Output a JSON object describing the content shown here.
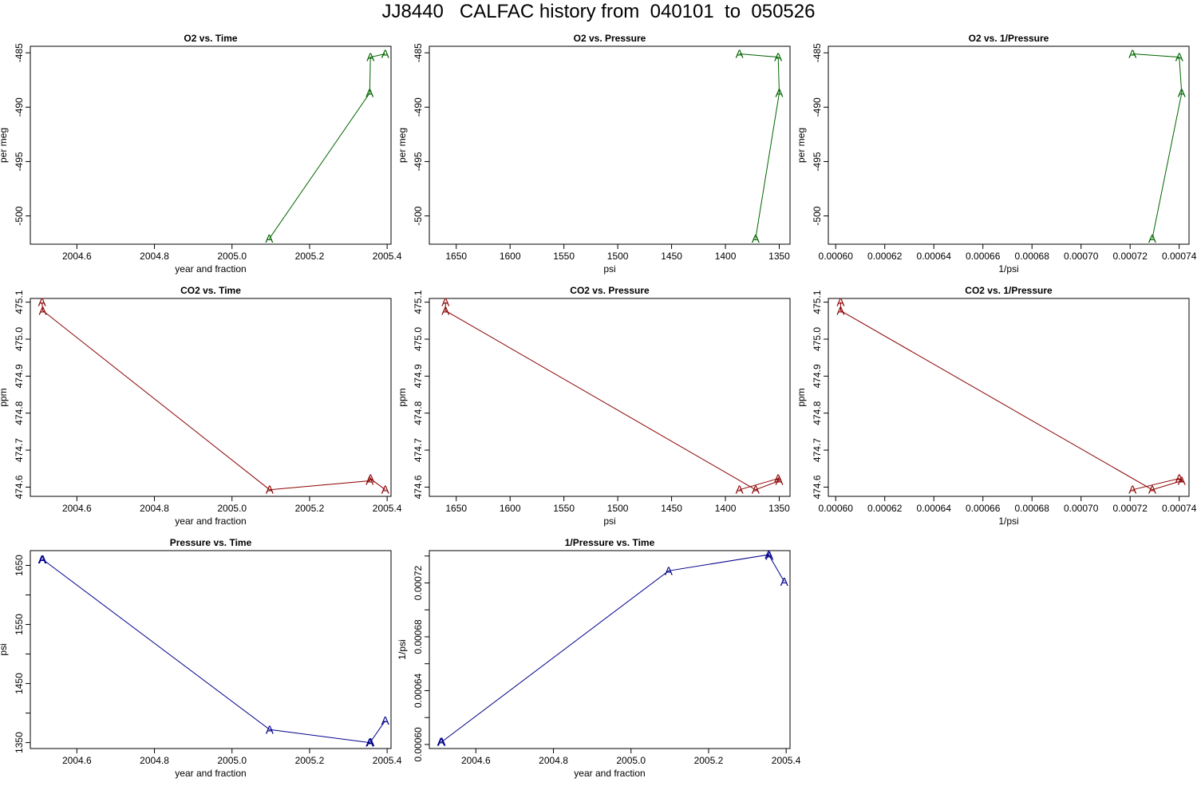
{
  "page_title": "JJ8440   CALFAC history from  040101  to  050526",
  "chart_data": [
    {
      "type": "line",
      "title": "O2 vs. Time",
      "xlabel": "year and fraction",
      "ylabel": "per meg",
      "xlim": [
        2004.48,
        2005.41
      ],
      "ylim": [
        -502.6,
        -484.4
      ],
      "xticks": [
        2004.6,
        2004.8,
        2005.0,
        2005.2,
        2005.4
      ],
      "xtick_labels": [
        "2004.6",
        "2004.8",
        "2005.0",
        "2005.2",
        "2005.4"
      ],
      "yticks": [
        -485,
        -490,
        -495,
        -500
      ],
      "ytick_labels": [
        "-485",
        "-490",
        "-495",
        "-500"
      ],
      "color": "#006400",
      "marker": "A",
      "series": [
        {
          "points": [
            [
              2005.096,
              -502.1
            ],
            [
              2005.355,
              -488.7
            ],
            [
              2005.357,
              -485.4
            ],
            [
              2005.395,
              -485.1
            ]
          ]
        }
      ]
    },
    {
      "type": "line",
      "title": "O2 vs. Pressure",
      "xlabel": "psi",
      "ylabel": "per meg",
      "xlim": [
        1675,
        1340
      ],
      "ylim": [
        -502.6,
        -484.4
      ],
      "xticks": [
        1650,
        1600,
        1550,
        1500,
        1450,
        1400,
        1350
      ],
      "xtick_labels": [
        "1650",
        "1600",
        "1550",
        "1500",
        "1450",
        "1400",
        "1350"
      ],
      "yticks": [
        -485,
        -490,
        -495,
        -500
      ],
      "ytick_labels": [
        "-485",
        "-490",
        "-495",
        "-500"
      ],
      "color": "#006400",
      "marker": "A",
      "series": [
        {
          "points": [
            [
              1372,
              -502.1
            ],
            [
              1350,
              -488.7
            ],
            [
              1351,
              -485.4
            ],
            [
              1387,
              -485.1
            ]
          ]
        }
      ]
    },
    {
      "type": "line",
      "title": "O2 vs. 1/Pressure",
      "xlabel": "1/psi",
      "ylabel": "per meg",
      "xlim": [
        0.000597,
        0.000744
      ],
      "ylim": [
        -502.6,
        -484.4
      ],
      "xticks": [
        0.0006,
        0.00062,
        0.00064,
        0.00066,
        0.00068,
        0.0007,
        0.00072,
        0.00074
      ],
      "xtick_labels": [
        "0.00060",
        "0.00062",
        "0.00064",
        "0.00066",
        "0.00068",
        "0.00070",
        "0.00072",
        "0.00074"
      ],
      "yticks": [
        -485,
        -490,
        -495,
        -500
      ],
      "ytick_labels": [
        "-485",
        "-490",
        "-495",
        "-500"
      ],
      "color": "#006400",
      "marker": "A",
      "series": [
        {
          "points": [
            [
              0.000729,
              -502.1
            ],
            [
              0.000741,
              -488.7
            ],
            [
              0.00074,
              -485.4
            ],
            [
              0.000721,
              -485.1
            ]
          ]
        }
      ]
    },
    {
      "type": "line",
      "title": "CO2 vs. Time",
      "xlabel": "year and fraction",
      "ylabel": "ppm",
      "xlim": [
        2004.48,
        2005.41
      ],
      "ylim": [
        474.575,
        475.11
      ],
      "xticks": [
        2004.6,
        2004.8,
        2005.0,
        2005.2,
        2005.4
      ],
      "xtick_labels": [
        "2004.6",
        "2004.8",
        "2005.0",
        "2005.2",
        "2005.4"
      ],
      "yticks": [
        474.6,
        474.7,
        474.8,
        474.9,
        475.0,
        475.1
      ],
      "ytick_labels": [
        "474.6",
        "474.7",
        "474.8",
        "474.9",
        "475.0",
        "475.1"
      ],
      "color": "#8b0000",
      "marker": "A",
      "series": [
        {
          "points": [
            [
              2004.51,
              475.1
            ],
            [
              2004.512,
              475.077
            ],
            [
              2005.097,
              474.593
            ],
            [
              2005.355,
              474.617
            ],
            [
              2005.357,
              474.623
            ],
            [
              2005.395,
              474.593
            ]
          ]
        }
      ]
    },
    {
      "type": "line",
      "title": "CO2 vs. Pressure",
      "xlabel": "psi",
      "ylabel": "ppm",
      "xlim": [
        1675,
        1340
      ],
      "ylim": [
        474.575,
        475.11
      ],
      "xticks": [
        1650,
        1600,
        1550,
        1500,
        1450,
        1400,
        1350
      ],
      "xtick_labels": [
        "1650",
        "1600",
        "1550",
        "1500",
        "1450",
        "1400",
        "1350"
      ],
      "yticks": [
        474.6,
        474.7,
        474.8,
        474.9,
        475.0,
        475.1
      ],
      "ytick_labels": [
        "474.6",
        "474.7",
        "474.8",
        "474.9",
        "475.0",
        "475.1"
      ],
      "color": "#8b0000",
      "marker": "A",
      "series": [
        {
          "points": [
            [
              1660,
              475.1
            ],
            [
              1660,
              475.077
            ],
            [
              1372,
              474.593
            ],
            [
              1350,
              474.617
            ],
            [
              1351,
              474.623
            ],
            [
              1387,
              474.593
            ]
          ]
        }
      ]
    },
    {
      "type": "line",
      "title": "CO2 vs. 1/Pressure",
      "xlabel": "1/psi",
      "ylabel": "ppm",
      "xlim": [
        0.000597,
        0.000744
      ],
      "ylim": [
        474.575,
        475.11
      ],
      "xticks": [
        0.0006,
        0.00062,
        0.00064,
        0.00066,
        0.00068,
        0.0007,
        0.00072,
        0.00074
      ],
      "xtick_labels": [
        "0.00060",
        "0.00062",
        "0.00064",
        "0.00066",
        "0.00068",
        "0.00070",
        "0.00072",
        "0.00074"
      ],
      "yticks": [
        474.6,
        474.7,
        474.8,
        474.9,
        475.0,
        475.1
      ],
      "ytick_labels": [
        "474.6",
        "474.7",
        "474.8",
        "474.9",
        "475.0",
        "475.1"
      ],
      "color": "#8b0000",
      "marker": "A",
      "series": [
        {
          "points": [
            [
              0.000602,
              475.1
            ],
            [
              0.000602,
              475.077
            ],
            [
              0.000729,
              474.593
            ],
            [
              0.000741,
              474.617
            ],
            [
              0.00074,
              474.623
            ],
            [
              0.000721,
              474.593
            ]
          ]
        }
      ]
    },
    {
      "type": "line",
      "title": "Pressure vs. Time",
      "xlabel": "year and fraction",
      "ylabel": "psi",
      "xlim": [
        2004.48,
        2005.41
      ],
      "ylim": [
        1340,
        1675
      ],
      "xticks": [
        2004.6,
        2004.8,
        2005.0,
        2005.2,
        2005.4
      ],
      "xtick_labels": [
        "2004.6",
        "2004.8",
        "2005.0",
        "2005.2",
        "2005.4"
      ],
      "yticks": [
        1350,
        1450,
        1550,
        1650
      ],
      "ytick_labels": [
        "1350",
        "1450",
        "1550",
        "1650"
      ],
      "minor_yticks": [
        1400,
        1500,
        1600
      ],
      "color": "#00008b",
      "marker": "A",
      "series": [
        {
          "points": [
            [
              2004.51,
              1660
            ],
            [
              2004.512,
              1660
            ],
            [
              2005.097,
              1372
            ],
            [
              2005.355,
              1350
            ],
            [
              2005.357,
              1351
            ],
            [
              2005.395,
              1387
            ]
          ]
        }
      ]
    },
    {
      "type": "line",
      "title": "1/Pressure vs. Time",
      "xlabel": "year and fraction",
      "ylabel": "1/psi",
      "xlim": [
        2004.48,
        2005.41
      ],
      "ylim": [
        0.000597,
        0.000744
      ],
      "xticks": [
        2004.6,
        2004.8,
        2005.0,
        2005.2,
        2005.4
      ],
      "xtick_labels": [
        "2004.6",
        "2004.8",
        "2005.0",
        "2005.2",
        "2005.4"
      ],
      "yticks": [
        0.0006,
        0.00064,
        0.00068,
        0.00072
      ],
      "ytick_labels": [
        "0.00060",
        "0.00064",
        "0.00068",
        "0.00072"
      ],
      "minor_yticks": [
        0.00062,
        0.00066,
        0.0007,
        0.00074
      ],
      "color": "#00008b",
      "marker": "A",
      "series": [
        {
          "points": [
            [
              2004.51,
              0.000602
            ],
            [
              2004.512,
              0.000602
            ],
            [
              2005.097,
              0.000729
            ],
            [
              2005.355,
              0.000741
            ],
            [
              2005.357,
              0.00074
            ],
            [
              2005.395,
              0.000721
            ]
          ]
        }
      ]
    }
  ]
}
